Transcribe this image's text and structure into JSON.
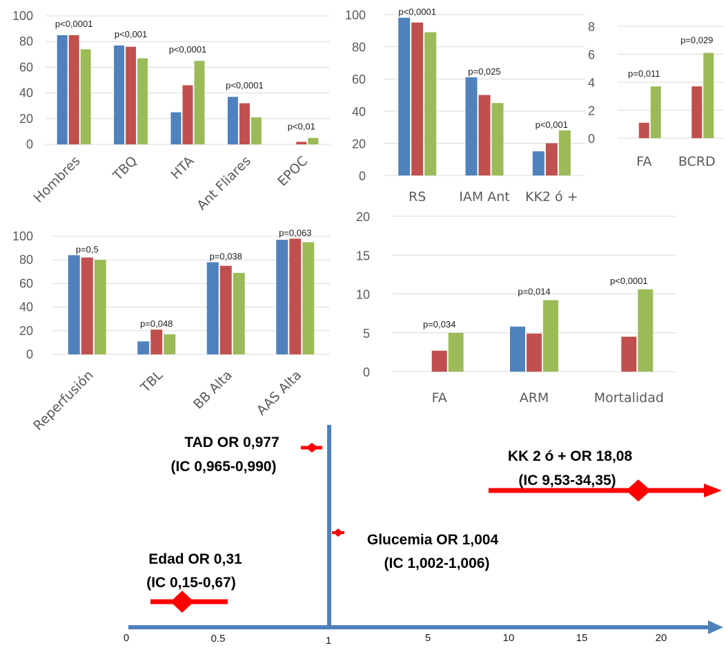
{
  "colors": {
    "blue": "#4f81bd",
    "red": "#c0504d",
    "green": "#9bbb59",
    "grid": "#d9d9d9",
    "forest_axis": "#4f81bd",
    "forest_marker": "#ff0000"
  },
  "chart_data": [
    {
      "id": "panel1",
      "type": "bar",
      "ylim": [
        0,
        100
      ],
      "yticks": [
        0,
        20,
        40,
        60,
        80,
        100
      ],
      "xlabel_rotated": true,
      "categories": [
        "Hombres",
        "TBQ",
        "HTA",
        "Ant Fliares",
        "EPOC"
      ],
      "series": [
        {
          "color": "blue",
          "values": [
            85,
            77,
            25,
            37,
            0
          ]
        },
        {
          "color": "red",
          "values": [
            85,
            76,
            46,
            32,
            2
          ]
        },
        {
          "color": "green",
          "values": [
            74,
            67,
            65,
            21,
            5
          ]
        }
      ],
      "annotations": [
        "p<0,0001",
        "p<0,001",
        "p<0,0001",
        "p<0,0001",
        "p<0,01"
      ]
    },
    {
      "id": "panel2",
      "type": "bar",
      "ylim": [
        0,
        100
      ],
      "yticks": [
        0,
        20,
        40,
        60,
        80,
        100
      ],
      "categories": [
        "RS",
        "IAM Ant",
        "KK2 ó +"
      ],
      "series": [
        {
          "color": "blue",
          "values": [
            98,
            61,
            15
          ]
        },
        {
          "color": "red",
          "values": [
            95,
            50,
            20
          ]
        },
        {
          "color": "green",
          "values": [
            89,
            45,
            28
          ]
        }
      ],
      "annotations": [
        "p<0,0001",
        "p=0,025",
        "p<0,001"
      ]
    },
    {
      "id": "panel3",
      "type": "bar",
      "ylim": [
        0,
        8
      ],
      "yticks": [
        0,
        2,
        4,
        6,
        8
      ],
      "categories": [
        "FA",
        "BCRD"
      ],
      "series": [
        {
          "color": "blue",
          "values": [
            0,
            0
          ]
        },
        {
          "color": "red",
          "values": [
            1.1,
            3.7
          ]
        },
        {
          "color": "green",
          "values": [
            3.7,
            6.1
          ]
        }
      ],
      "annotations": [
        "p=0,011",
        "p=0,029"
      ]
    },
    {
      "id": "panel4",
      "type": "bar",
      "ylim": [
        0,
        100
      ],
      "yticks": [
        0,
        20,
        40,
        60,
        80,
        100
      ],
      "xlabel_rotated": true,
      "categories": [
        "Reperfusión",
        "TBL",
        "BB Alta",
        "AAS Alta"
      ],
      "series": [
        {
          "color": "blue",
          "values": [
            84,
            11,
            78,
            97
          ]
        },
        {
          "color": "red",
          "values": [
            82,
            21,
            75,
            98
          ]
        },
        {
          "color": "green",
          "values": [
            80,
            17,
            69,
            95
          ]
        }
      ],
      "annotations": [
        "p=0,5",
        "p=0,048",
        "p=0,038",
        "p=0,063"
      ]
    },
    {
      "id": "panel5",
      "type": "bar",
      "ylim": [
        0,
        20
      ],
      "yticks": [
        0,
        5,
        10,
        15,
        20
      ],
      "categories": [
        "FA",
        "ARM",
        "Mortalidad"
      ],
      "series": [
        {
          "color": "blue",
          "values": [
            0,
            5.8,
            0
          ]
        },
        {
          "color": "red",
          "values": [
            2.7,
            4.9,
            4.5
          ]
        },
        {
          "color": "green",
          "values": [
            5,
            9.2,
            10.6
          ]
        }
      ],
      "annotations": [
        "p=0,034",
        "p=0,014",
        "p<0,0001"
      ]
    }
  ],
  "forest": {
    "axis_ticks": [
      "0",
      "0.5",
      "1",
      "5",
      "10",
      "15",
      "20"
    ],
    "items": [
      {
        "id": "tad",
        "lines": [
          "TAD OR 0,977",
          "(IC 0,965-0,990)"
        ],
        "or": 0.977,
        "ci": [
          0.965,
          0.99
        ]
      },
      {
        "id": "kk",
        "lines": [
          "KK 2 ó + OR 18,08",
          "(IC 9,53-34,35)"
        ],
        "or": 18.08,
        "ci": [
          9.53,
          34.35
        ],
        "ci_arrow": true
      },
      {
        "id": "glu",
        "lines": [
          "Glucemia OR 1,004",
          "(IC 1,002-1,006)"
        ],
        "or": 1.004,
        "ci": [
          1.002,
          1.006
        ]
      },
      {
        "id": "edad",
        "lines": [
          "Edad OR 0,31",
          "(IC 0,15-0,67)"
        ],
        "or": 0.31,
        "ci": [
          0.15,
          0.67
        ]
      }
    ]
  }
}
